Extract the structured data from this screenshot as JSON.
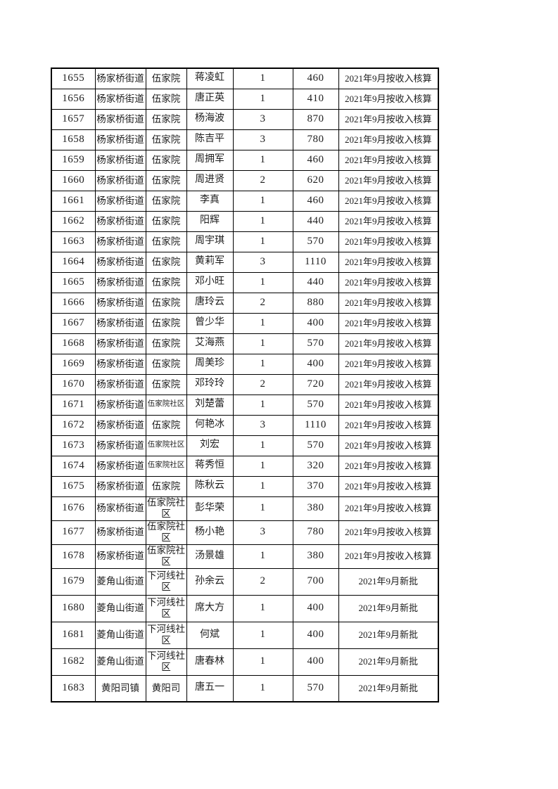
{
  "page": {
    "background_color": "#ffffff",
    "text_color": "#1d1d1d",
    "table_border_color": "#000000"
  },
  "table": {
    "rows": [
      {
        "id": "1655",
        "street": "杨家桥街道",
        "community": "伍家院",
        "name": "蒋凌虹",
        "count": "1",
        "amount": "460",
        "note": "2021年9月按收入核算"
      },
      {
        "id": "1656",
        "street": "杨家桥街道",
        "community": "伍家院",
        "name": "唐正英",
        "count": "1",
        "amount": "410",
        "note": "2021年9月按收入核算"
      },
      {
        "id": "1657",
        "street": "杨家桥街道",
        "community": "伍家院",
        "name": "杨海波",
        "count": "3",
        "amount": "870",
        "note": "2021年9月按收入核算"
      },
      {
        "id": "1658",
        "street": "杨家桥街道",
        "community": "伍家院",
        "name": "陈吉平",
        "count": "3",
        "amount": "780",
        "note": "2021年9月按收入核算"
      },
      {
        "id": "1659",
        "street": "杨家桥街道",
        "community": "伍家院",
        "name": "周拥军",
        "count": "1",
        "amount": "460",
        "note": "2021年9月按收入核算"
      },
      {
        "id": "1660",
        "street": "杨家桥街道",
        "community": "伍家院",
        "name": "周进贤",
        "count": "2",
        "amount": "620",
        "note": "2021年9月按收入核算"
      },
      {
        "id": "1661",
        "street": "杨家桥街道",
        "community": "伍家院",
        "name": "李真",
        "count": "1",
        "amount": "460",
        "note": "2021年9月按收入核算"
      },
      {
        "id": "1662",
        "street": "杨家桥街道",
        "community": "伍家院",
        "name": "阳辉",
        "count": "1",
        "amount": "440",
        "note": "2021年9月按收入核算"
      },
      {
        "id": "1663",
        "street": "杨家桥街道",
        "community": "伍家院",
        "name": "周宇琪",
        "count": "1",
        "amount": "570",
        "note": "2021年9月按收入核算"
      },
      {
        "id": "1664",
        "street": "杨家桥街道",
        "community": "伍家院",
        "name": "黄莉军",
        "count": "3",
        "amount": "1110",
        "note": "2021年9月按收入核算"
      },
      {
        "id": "1665",
        "street": "杨家桥街道",
        "community": "伍家院",
        "name": "邓小旺",
        "count": "1",
        "amount": "440",
        "note": "2021年9月按收入核算"
      },
      {
        "id": "1666",
        "street": "杨家桥街道",
        "community": "伍家院",
        "name": "唐玲云",
        "count": "2",
        "amount": "880",
        "note": "2021年9月按收入核算"
      },
      {
        "id": "1667",
        "street": "杨家桥街道",
        "community": "伍家院",
        "name": "曾少华",
        "count": "1",
        "amount": "400",
        "note": "2021年9月按收入核算"
      },
      {
        "id": "1668",
        "street": "杨家桥街道",
        "community": "伍家院",
        "name": "艾海燕",
        "count": "1",
        "amount": "570",
        "note": "2021年9月按收入核算"
      },
      {
        "id": "1669",
        "street": "杨家桥街道",
        "community": "伍家院",
        "name": "周美珍",
        "count": "1",
        "amount": "400",
        "note": "2021年9月按收入核算"
      },
      {
        "id": "1670",
        "street": "杨家桥街道",
        "community": "伍家院",
        "name": "邓玲玲",
        "count": "2",
        "amount": "720",
        "note": "2021年9月按收入核算"
      },
      {
        "id": "1671",
        "street": "杨家桥街道",
        "community": "伍家院社区",
        "name": "刘楚蕾",
        "count": "1",
        "amount": "570",
        "note": "2021年9月按收入核算"
      },
      {
        "id": "1672",
        "street": "杨家桥街道",
        "community": "伍家院",
        "name": "何艳冰",
        "count": "3",
        "amount": "1110",
        "note": "2021年9月按收入核算"
      },
      {
        "id": "1673",
        "street": "杨家桥街道",
        "community": "伍家院社区",
        "name": "刘宏",
        "count": "1",
        "amount": "570",
        "note": "2021年9月按收入核算"
      },
      {
        "id": "1674",
        "street": "杨家桥街道",
        "community": "伍家院社区",
        "name": "蒋秀恒",
        "count": "1",
        "amount": "320",
        "note": "2021年9月按收入核算"
      },
      {
        "id": "1675",
        "street": "杨家桥街道",
        "community": "伍家院",
        "name": "陈秋云",
        "count": "1",
        "amount": "370",
        "note": "2021年9月按收入核算"
      },
      {
        "id": "1676",
        "street": "杨家桥街道",
        "community": "伍家院社区",
        "name": "彭华荣",
        "count": "1",
        "amount": "380",
        "note": "2021年9月按收入核算"
      },
      {
        "id": "1677",
        "street": "杨家桥街道",
        "community": "伍家院社区",
        "name": "杨小艳",
        "count": "3",
        "amount": "780",
        "note": "2021年9月按收入核算"
      },
      {
        "id": "1678",
        "street": "杨家桥街道",
        "community": "伍家院社区",
        "name": "汤景雄",
        "count": "1",
        "amount": "380",
        "note": "2021年9月按收入核算"
      },
      {
        "id": "1679",
        "street": "菱角山街道",
        "community": "下河线社区",
        "name": "孙余云",
        "count": "2",
        "amount": "700",
        "note": "2021年9月新批"
      },
      {
        "id": "1680",
        "street": "菱角山街道",
        "community": "下河线社区",
        "name": "席大方",
        "count": "1",
        "amount": "400",
        "note": "2021年9月新批"
      },
      {
        "id": "1681",
        "street": "菱角山街道",
        "community": "下河线社区",
        "name": "何斌",
        "count": "1",
        "amount": "400",
        "note": "2021年9月新批"
      },
      {
        "id": "1682",
        "street": "菱角山街道",
        "community": "下河线社区",
        "name": "唐春林",
        "count": "1",
        "amount": "400",
        "note": "2021年9月新批"
      },
      {
        "id": "1683",
        "street": "黄阳司镇",
        "community": "黄阳司",
        "name": "唐五一",
        "count": "1",
        "amount": "570",
        "note": "2021年9月新批"
      }
    ]
  }
}
